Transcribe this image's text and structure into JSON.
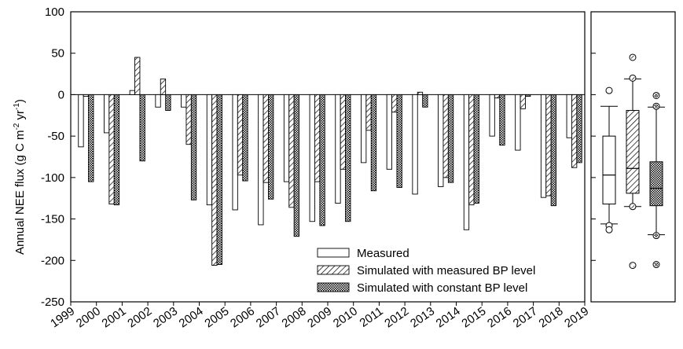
{
  "chart_data": {
    "type": "bar",
    "ylabel_main": "Annual NEE flux (g C m",
    "ylabel_sup1": "-2",
    "ylabel_mid": " yr",
    "ylabel_sup2": "-1",
    "ylabel_end": ")",
    "ylim": [
      -250,
      100
    ],
    "yticks": [
      100,
      50,
      0,
      -50,
      -100,
      -150,
      -200,
      -250
    ],
    "x_tick_labels": [
      "1999",
      "2000",
      "2001",
      "2002",
      "2003",
      "2004",
      "2005",
      "2006",
      "2007",
      "2008",
      "2009",
      "2010",
      "2011",
      "2012",
      "2013",
      "2014",
      "2015",
      "2016",
      "2017",
      "2018",
      "2019"
    ],
    "categories": [
      "2000",
      "2001",
      "2002",
      "2003",
      "2004",
      "2005",
      "2006",
      "2007",
      "2008",
      "2009",
      "2010",
      "2011",
      "2012",
      "2013",
      "2014",
      "2015",
      "2016",
      "2017",
      "2018",
      "2019"
    ],
    "series": [
      {
        "name": "Measured",
        "pattern": "open",
        "values": [
          -63,
          -46,
          5,
          -15,
          -15,
          -133,
          -139,
          -157,
          -105,
          -153,
          -131,
          -82,
          -90,
          -120,
          -111,
          -163,
          -50,
          -67,
          -124,
          -52
        ]
      },
      {
        "name": "Simulated with measured BP level",
        "pattern": "hatch",
        "values": [
          -2,
          -132,
          45,
          19,
          -60,
          -206,
          -97,
          -106,
          -136,
          -105,
          -90,
          -43,
          -21,
          3,
          -100,
          -133,
          -4,
          -17,
          -122,
          -88
        ]
      },
      {
        "name": "Simulated with constant BP level",
        "pattern": "crosshatch",
        "values": [
          -105,
          -133,
          -80,
          -19,
          -127,
          -205,
          -104,
          -126,
          -171,
          -158,
          -153,
          -116,
          -112,
          -15,
          -106,
          -131,
          -61,
          -2,
          -134,
          -82
        ]
      }
    ],
    "legend_position": "lower-right",
    "boxplots": [
      {
        "series": "Measured",
        "pattern": "open",
        "min": -156,
        "q1": -132,
        "median": -97,
        "q3": -50,
        "max": -14,
        "outliers": [
          5,
          -158,
          -163
        ]
      },
      {
        "series": "Simulated with measured BP level",
        "pattern": "hatch",
        "min": -135,
        "q1": -119,
        "median": -89,
        "q3": -19,
        "max": 19,
        "outliers": [
          45,
          20,
          -135,
          -206
        ]
      },
      {
        "series": "Simulated with constant BP level",
        "pattern": "crosshatch",
        "min": -169,
        "q1": -134,
        "median": -113,
        "q3": -81,
        "max": -15,
        "outliers": [
          -1,
          -14,
          -170,
          -205
        ]
      }
    ]
  }
}
